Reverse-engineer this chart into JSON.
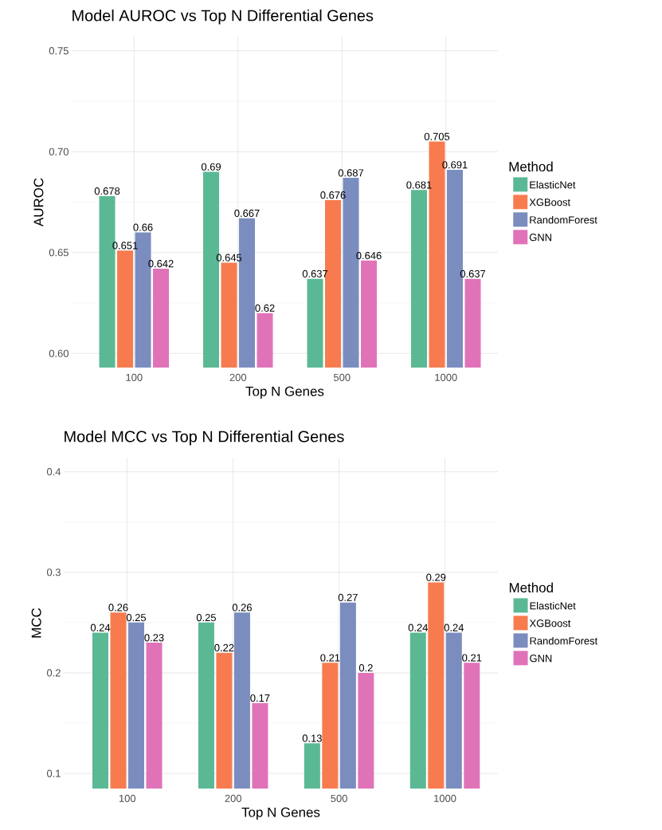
{
  "chart_data": [
    {
      "type": "bar",
      "title": "Model AUROC vs Top N Differential Genes",
      "xlabel": "Top N Genes",
      "ylabel": "AUROC",
      "legend_title": "Method",
      "categories": [
        "100",
        "200",
        "500",
        "1000"
      ],
      "series": [
        {
          "name": "ElasticNet",
          "color": "#5ab994",
          "values": [
            0.678,
            0.69,
            0.637,
            0.681
          ]
        },
        {
          "name": "XGBoost",
          "color": "#f77b4f",
          "values": [
            0.651,
            0.645,
            0.676,
            0.705
          ]
        },
        {
          "name": "RandomForest",
          "color": "#7b8dbf",
          "values": [
            0.66,
            0.667,
            0.687,
            0.691
          ]
        },
        {
          "name": "GNN",
          "color": "#e073b8",
          "values": [
            0.642,
            0.62,
            0.646,
            0.637
          ]
        }
      ],
      "ylim": [
        0.593,
        0.757
      ],
      "yticks": [
        {
          "value": 0.6,
          "label": "0.60"
        },
        {
          "value": 0.65,
          "label": "0.65"
        },
        {
          "value": 0.7,
          "label": "0.70"
        },
        {
          "value": 0.75,
          "label": "0.75"
        }
      ],
      "grid": true,
      "legend": "right",
      "data_labels": true
    },
    {
      "type": "bar",
      "title": "Model MCC vs Top N Differential Genes",
      "xlabel": "Top N Genes",
      "ylabel": "MCC",
      "legend_title": "Method",
      "categories": [
        "100",
        "200",
        "500",
        "1000"
      ],
      "series": [
        {
          "name": "ElasticNet",
          "color": "#5ab994",
          "values": [
            0.24,
            0.25,
            0.13,
            0.24
          ]
        },
        {
          "name": "XGBoost",
          "color": "#f77b4f",
          "values": [
            0.26,
            0.22,
            0.21,
            0.29
          ]
        },
        {
          "name": "RandomForest",
          "color": "#7b8dbf",
          "values": [
            0.25,
            0.26,
            0.27,
            0.24
          ]
        },
        {
          "name": "GNN",
          "color": "#e073b8",
          "values": [
            0.23,
            0.17,
            0.2,
            0.21
          ]
        }
      ],
      "ylim": [
        0.085,
        0.414
      ],
      "yticks": [
        0.1,
        0.2,
        0.3,
        0.4
      ],
      "grid": true,
      "legend": "right",
      "data_labels": true
    }
  ]
}
